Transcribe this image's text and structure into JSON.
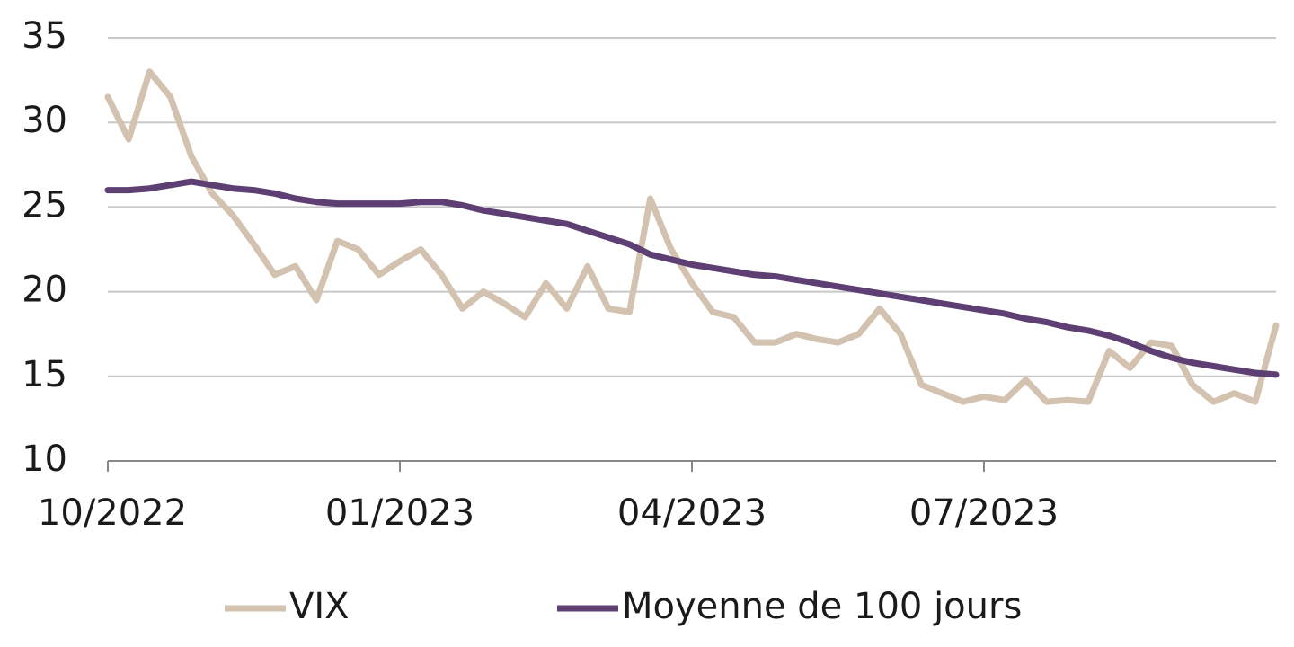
{
  "chart_data": {
    "type": "line",
    "categories": [
      "10/2022",
      null,
      null,
      null,
      null,
      null,
      null,
      null,
      null,
      null,
      null,
      null,
      null,
      null,
      "01/2023",
      null,
      null,
      null,
      null,
      null,
      null,
      null,
      null,
      null,
      null,
      null,
      null,
      null,
      "04/2023",
      null,
      null,
      null,
      null,
      null,
      null,
      null,
      null,
      null,
      null,
      null,
      null,
      null,
      "07/2023",
      null,
      null,
      null,
      null,
      null,
      null,
      null,
      null,
      null,
      null,
      null,
      null,
      null,
      null
    ],
    "series": [
      {
        "name": "VIX",
        "color": "#d3c2b0",
        "values": [
          31.5,
          29,
          33,
          31.5,
          28,
          25.8,
          24.5,
          22.8,
          21,
          21.5,
          19.5,
          23,
          22.5,
          21,
          21.8,
          22.5,
          21,
          19,
          20,
          19.3,
          18.5,
          20.5,
          19,
          21.5,
          19,
          18.8,
          25.5,
          22.5,
          20.5,
          18.8,
          18.5,
          17,
          17,
          17.5,
          17.2,
          17,
          17.5,
          19,
          17.5,
          14.5,
          14,
          13.5,
          13.8,
          13.6,
          14.8,
          13.5,
          13.6,
          13.5,
          16.5,
          15.5,
          17,
          16.8,
          14.5,
          13.5,
          14,
          13.5,
          18
        ]
      },
      {
        "name": "Moyenne de 100 jours",
        "color": "#5e3f73",
        "values": [
          26,
          26,
          26.1,
          26.3,
          26.5,
          26.3,
          26.1,
          26,
          25.8,
          25.5,
          25.3,
          25.2,
          25.2,
          25.2,
          25.2,
          25.3,
          25.3,
          25.1,
          24.8,
          24.6,
          24.4,
          24.2,
          24,
          23.6,
          23.2,
          22.8,
          22.2,
          21.9,
          21.6,
          21.4,
          21.2,
          21,
          20.9,
          20.7,
          20.5,
          20.3,
          20.1,
          19.9,
          19.7,
          19.5,
          19.3,
          19.1,
          18.9,
          18.7,
          18.4,
          18.2,
          17.9,
          17.7,
          17.4,
          17,
          16.5,
          16.1,
          15.8,
          15.6,
          15.4,
          15.2,
          15.1
        ]
      }
    ],
    "ylim": [
      10,
      35
    ],
    "yticks": [
      10,
      15,
      20,
      25,
      30,
      35
    ],
    "grid": true
  }
}
